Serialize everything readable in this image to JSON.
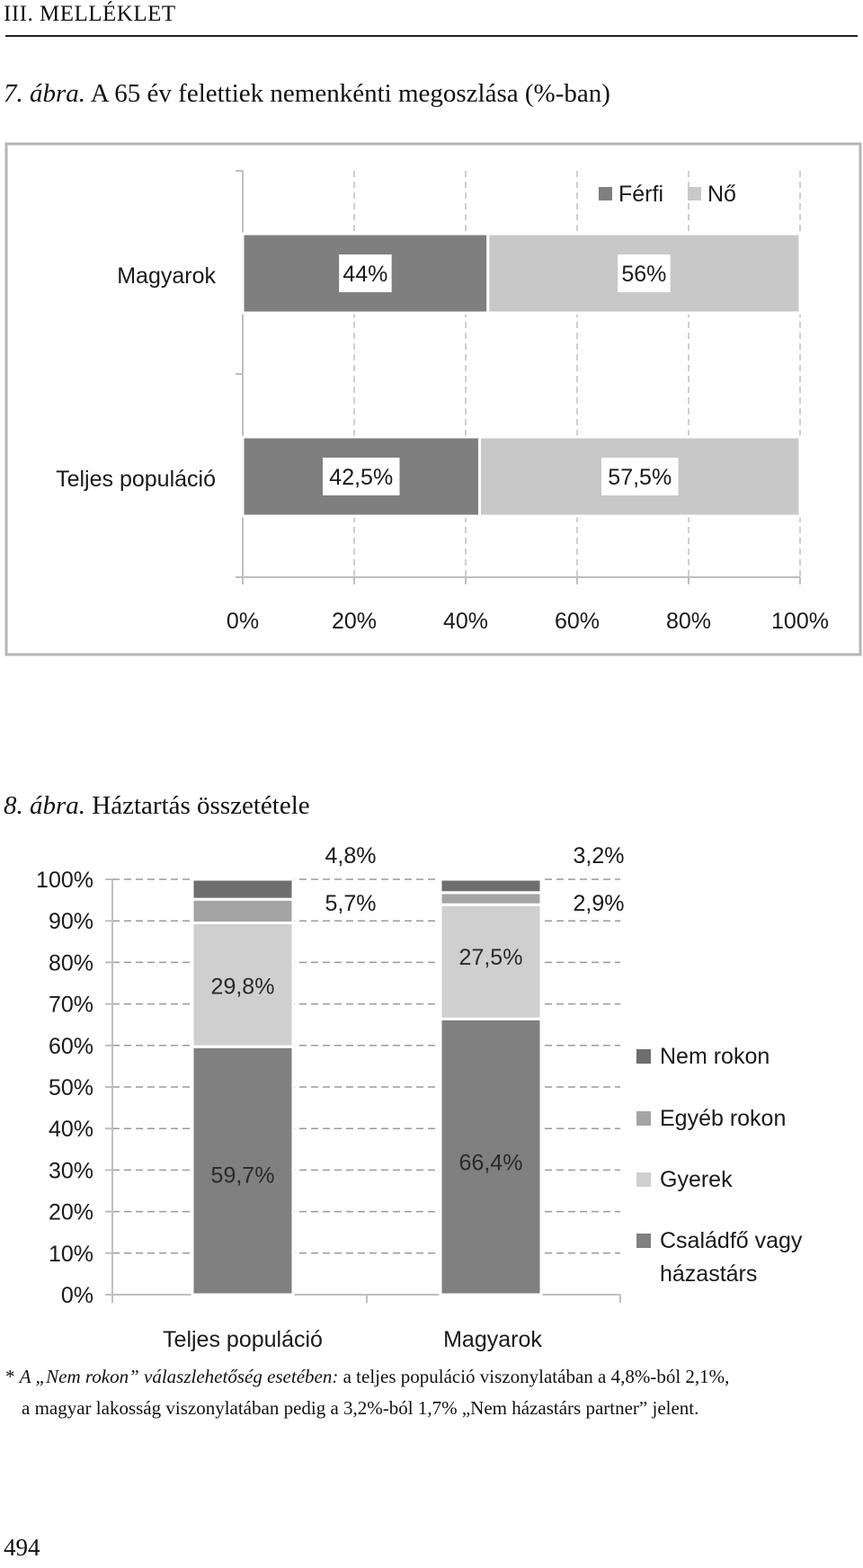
{
  "page": {
    "header": "III. MELLÉKLET",
    "page_number": "494"
  },
  "figure7": {
    "label": "7. ábra.",
    "title": "A 65 év felettiek nemenkénti megoszlása (%-ban)"
  },
  "figure8": {
    "label": "8. ábra.",
    "title": "Háztartás összetétele"
  },
  "footnote": {
    "star": "* ",
    "italic_part": "A „Nem rokon” válaszlehetőség esetében:",
    "line1_rest": " a teljes populáció viszonylatában a 4,8%-ból 2,1%,",
    "line2": "a magyar lakosság viszonylatában pedig a 3,2%-ból 1,7% „Nem házastárs partner” jelent."
  },
  "chart_data": [
    {
      "type": "bar",
      "orientation": "horizontal",
      "stacked": true,
      "categories": [
        "Magyarok",
        "Teljes populáció"
      ],
      "series": [
        {
          "name": "Férfi",
          "values": [
            44,
            42.5
          ],
          "labels": [
            "44%",
            "42,5%"
          ],
          "color": "#7f7f7f"
        },
        {
          "name": "Nő",
          "values": [
            56,
            57.5
          ],
          "labels": [
            "56%",
            "57,5%"
          ],
          "color": "#c8c8c8"
        }
      ],
      "xlim": [
        0,
        100
      ],
      "xticks": [
        "0%",
        "20%",
        "40%",
        "60%",
        "80%",
        "100%"
      ],
      "grid": "vertical dashed",
      "legend": "top-right"
    },
    {
      "type": "bar",
      "orientation": "vertical",
      "stacked": true,
      "categories": [
        "Teljes populáció",
        "Magyarok"
      ],
      "series": [
        {
          "name": "Családfő vagy házastárs",
          "values": [
            59.7,
            66.4
          ],
          "labels": [
            "59,7%",
            "66,4%"
          ],
          "color": "#808080"
        },
        {
          "name": "Gyerek",
          "values": [
            29.8,
            27.5
          ],
          "labels": [
            "29,8%",
            "27,5%"
          ],
          "color": "#cfcfcf"
        },
        {
          "name": "Egyéb rokon",
          "values": [
            5.7,
            2.9
          ],
          "labels": [
            "5,7%",
            "2,9%"
          ],
          "color": "#a4a4a4"
        },
        {
          "name": "Nem rokon",
          "values": [
            4.8,
            3.2
          ],
          "labels": [
            "4,8%",
            "3,2%"
          ],
          "color": "#6e6e6e"
        }
      ],
      "ylim": [
        0,
        100
      ],
      "yticks": [
        "0%",
        "10%",
        "20%",
        "30%",
        "40%",
        "50%",
        "60%",
        "70%",
        "80%",
        "90%",
        "100%"
      ],
      "grid": "horizontal dashed",
      "legend": "right",
      "legend_entries": [
        "Nem rokon",
        "Egyéb rokon",
        "Gyerek",
        "Családfő vagy",
        "házastárs"
      ]
    }
  ]
}
